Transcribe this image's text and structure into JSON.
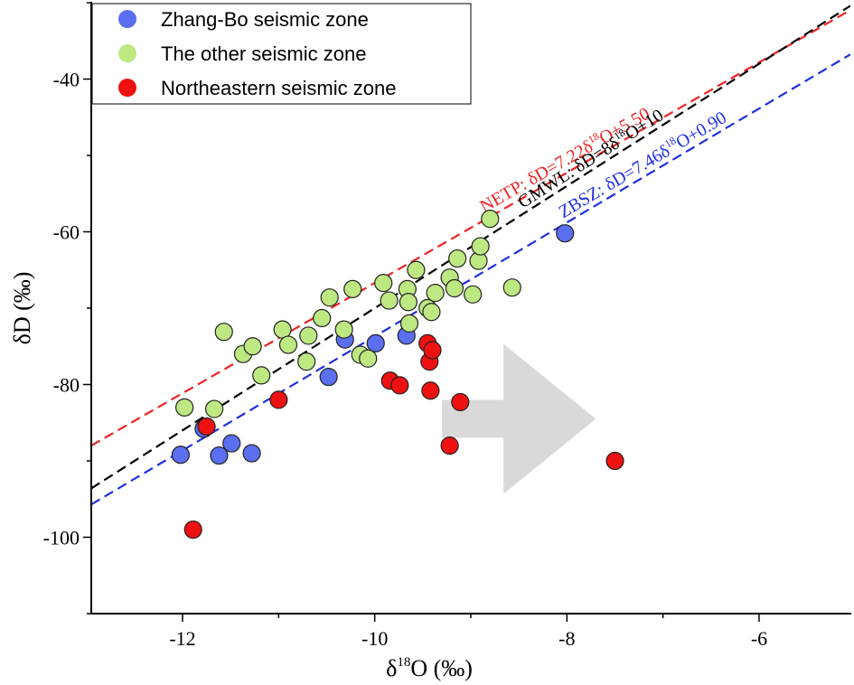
{
  "chart_data": {
    "type": "scatter",
    "xlabel": "δ18O (‰)",
    "xlabel_main": "δ",
    "xlabel_sup": "18",
    "xlabel_rest": "O (‰)",
    "ylabel": "δD (‰)",
    "xlim": [
      -12.95,
      -5.05
    ],
    "ylim": [
      -110,
      -30
    ],
    "xticks": [
      -12,
      -10,
      -8,
      -6
    ],
    "xtick_labels": [
      "-12",
      "-10",
      "-8",
      "-6"
    ],
    "yticks": [
      -100,
      -80,
      -60,
      -40
    ],
    "ytick_labels": [
      "-100",
      "-80",
      "-60",
      "-40"
    ],
    "legend_position": "top-left",
    "series": [
      {
        "name": "Zhang-Bo seismic zone",
        "color": "#5b6ff0",
        "points": [
          [
            -12.02,
            -89.2
          ],
          [
            -11.78,
            -85.8
          ],
          [
            -11.62,
            -89.3
          ],
          [
            -11.49,
            -87.7
          ],
          [
            -11.28,
            -89.0
          ],
          [
            -10.48,
            -79.0
          ],
          [
            -10.31,
            -74.1
          ],
          [
            -9.99,
            -74.6
          ],
          [
            -9.67,
            -73.6
          ],
          [
            -8.02,
            -60.2
          ]
        ]
      },
      {
        "name": "The other seismic zone",
        "color": "#bde882",
        "points": [
          [
            -11.98,
            -83.0
          ],
          [
            -11.67,
            -83.2
          ],
          [
            -11.57,
            -73.1
          ],
          [
            -11.37,
            -76.0
          ],
          [
            -11.27,
            -75.0
          ],
          [
            -11.18,
            -78.8
          ],
          [
            -10.96,
            -72.8
          ],
          [
            -10.9,
            -74.8
          ],
          [
            -10.71,
            -77.0
          ],
          [
            -10.69,
            -73.6
          ],
          [
            -10.55,
            -71.3
          ],
          [
            -10.47,
            -68.6
          ],
          [
            -10.32,
            -72.8
          ],
          [
            -10.23,
            -67.5
          ],
          [
            -10.15,
            -76.1
          ],
          [
            -10.07,
            -76.6
          ],
          [
            -9.91,
            -66.7
          ],
          [
            -9.85,
            -69.0
          ],
          [
            -9.66,
            -67.5
          ],
          [
            -9.65,
            -69.2
          ],
          [
            -9.64,
            -72.0
          ],
          [
            -9.57,
            -65.0
          ],
          [
            -9.45,
            -70.0
          ],
          [
            -9.41,
            -70.5
          ],
          [
            -9.37,
            -68.0
          ],
          [
            -9.22,
            -66.0
          ],
          [
            -9.17,
            -67.4
          ],
          [
            -9.14,
            -63.5
          ],
          [
            -8.98,
            -68.2
          ],
          [
            -8.92,
            -63.8
          ],
          [
            -8.9,
            -61.9
          ],
          [
            -8.8,
            -58.3
          ],
          [
            -8.57,
            -67.3
          ]
        ]
      },
      {
        "name": "Northeastern seismic zone",
        "color": "#ee1111",
        "points": [
          [
            -11.89,
            -99.0
          ],
          [
            -11.75,
            -85.5
          ],
          [
            -11.0,
            -82.0
          ],
          [
            -9.84,
            -79.5
          ],
          [
            -9.74,
            -80.1
          ],
          [
            -9.45,
            -74.6
          ],
          [
            -9.43,
            -77.0
          ],
          [
            -9.42,
            -80.8
          ],
          [
            -9.4,
            -75.5
          ],
          [
            -9.11,
            -82.3
          ],
          [
            -9.22,
            -88.0
          ],
          [
            -7.5,
            -90.0
          ]
        ]
      }
    ],
    "lines": [
      {
        "name": "NETP",
        "slope": 7.22,
        "intercept": 5.5,
        "color": "#ee2222",
        "label": "NETP: δD=7.22δ18O+5.50",
        "label_prefix": "NETP: δD=7.22δ",
        "label_sup": "18",
        "label_suffix": "O+5.50"
      },
      {
        "name": "GMWL",
        "slope": 8,
        "intercept": 10,
        "color": "#000000",
        "label": "GMWL: δD=8δ18O+10",
        "label_prefix": "GMWL: δD=8δ",
        "label_sup": "18",
        "label_suffix": "O+10"
      },
      {
        "name": "ZBSZ",
        "slope": 7.46,
        "intercept": 0.9,
        "color": "#1f2fe0",
        "label": "ZBSZ: δD=7.46δ18O+0.90",
        "label_prefix": "ZBSZ: δD=7.46δ",
        "label_sup": "18",
        "label_suffix": "O+0.90"
      }
    ],
    "annotation": {
      "type": "arrow",
      "direction": "right",
      "color": "#d9d9d9",
      "x_start": -9.3,
      "x_end": -7.7,
      "y_center": -84.5
    }
  }
}
